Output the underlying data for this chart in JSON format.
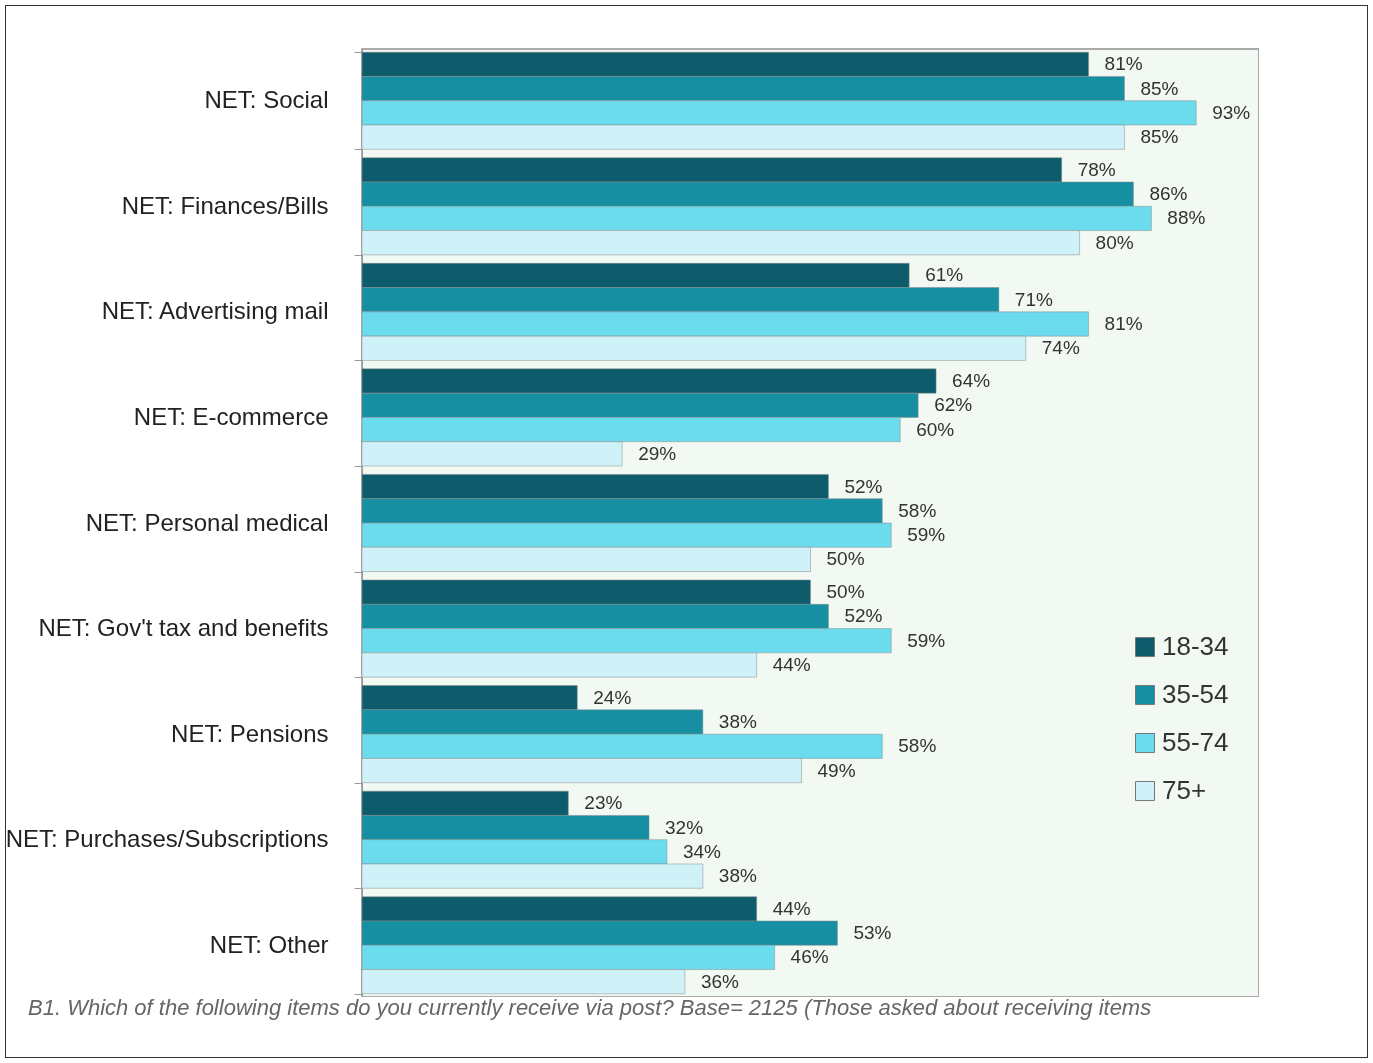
{
  "chart_data": {
    "type": "bar",
    "orientation": "horizontal",
    "categories": [
      "NET: Social",
      "NET: Finances/Bills",
      "NET: Advertising mail",
      "NET: E-commerce",
      "NET: Personal medical",
      "NET: Gov't tax and benefits",
      "NET: Pensions",
      "NET: Purchases/Subscriptions",
      "NET: Other"
    ],
    "series": [
      {
        "name": "18-34",
        "color": "#0e5c6b",
        "values": [
          81,
          78,
          61,
          64,
          52,
          50,
          24,
          23,
          44
        ],
        "value_labels": [
          "81%",
          "78%",
          "61%",
          "64%",
          "52%",
          "50%",
          "24%",
          "23%",
          "44%"
        ]
      },
      {
        "name": "35-54",
        "color": "#168fa3",
        "values": [
          85,
          86,
          71,
          62,
          58,
          52,
          38,
          32,
          53
        ],
        "value_labels": [
          "85%",
          "86%",
          "71%",
          "62%",
          "58%",
          "52%",
          "38%",
          "32%",
          "53%"
        ]
      },
      {
        "name": "55-74",
        "color": "#6bdcee",
        "values": [
          93,
          88,
          81,
          60,
          59,
          59,
          58,
          34,
          46
        ],
        "value_labels": [
          "93%",
          "88%",
          "81%",
          "60%",
          "59%",
          "59%",
          "58%",
          "34%",
          "46%"
        ]
      },
      {
        "name": "75+",
        "color": "#cff2f8",
        "values": [
          85,
          80,
          74,
          29,
          50,
          44,
          49,
          38,
          36
        ],
        "value_labels": [
          "85%",
          "80%",
          "74%",
          "29%",
          "50%",
          "44%",
          "49%",
          "38%",
          "36%"
        ]
      }
    ],
    "xlim": [
      0,
      100
    ],
    "tick_labels": "y",
    "legend": "right",
    "annotations": [
      "B1. Which of the following items do you currently receive via post? Base= 2125 (Those asked about receiving items"
    ]
  }
}
